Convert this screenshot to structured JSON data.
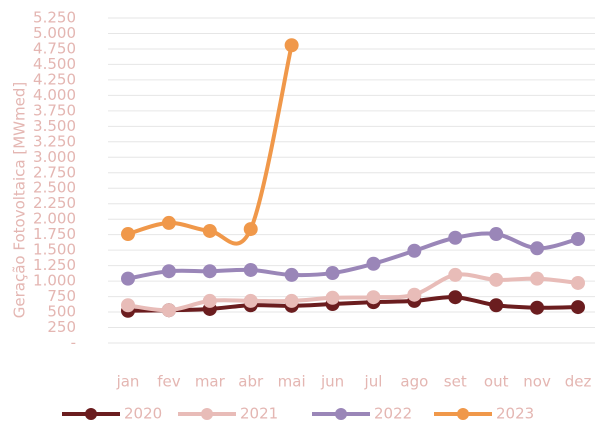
{
  "chart_data": {
    "type": "line",
    "y_label": "Geração Fotovoltaica [MWmed]",
    "categories": [
      "jan",
      "fev",
      "mar",
      "abr",
      "mai",
      "jun",
      "jul",
      "ago",
      "set",
      "out",
      "nov",
      "dez"
    ],
    "series": [
      {
        "name": "2020",
        "color": "#6b1d1f",
        "values": [
          520,
          530,
          550,
          610,
          600,
          630,
          660,
          680,
          740,
          610,
          570,
          580
        ]
      },
      {
        "name": "2021",
        "color": "#e8bcb8",
        "values": [
          610,
          530,
          680,
          680,
          680,
          730,
          740,
          780,
          1100,
          1020,
          1040,
          970
        ]
      },
      {
        "name": "2022",
        "color": "#9a86b8",
        "values": [
          1040,
          1160,
          1160,
          1180,
          1100,
          1130,
          1280,
          1490,
          1700,
          1760,
          1530,
          1680
        ]
      },
      {
        "name": "2023",
        "color": "#f0984a",
        "values": [
          1760,
          1940,
          1810,
          1840,
          4810,
          null,
          null,
          null,
          null,
          null,
          null,
          null
        ]
      }
    ],
    "ylim": [
      0,
      5250
    ],
    "yticks": [
      {
        "value": 0,
        "label": "-"
      },
      250,
      500,
      750,
      {
        "value": 1000,
        "label": "1.000"
      },
      {
        "value": 1250,
        "label": "1.250"
      },
      {
        "value": 1500,
        "label": "1.500"
      },
      {
        "value": 1750,
        "label": "1.750"
      },
      {
        "value": 2000,
        "label": "2.000"
      },
      {
        "value": 2250,
        "label": "2.250"
      },
      {
        "value": 2500,
        "label": "2.500"
      },
      {
        "value": 2750,
        "label": "2.750"
      },
      {
        "value": 3000,
        "label": "3.000"
      },
      {
        "value": 3250,
        "label": "3.250"
      },
      {
        "value": 3500,
        "label": "3.500"
      },
      {
        "value": 3750,
        "label": "3.750"
      },
      {
        "value": 4000,
        "label": "4.000"
      },
      {
        "value": 4250,
        "label": "4.250"
      },
      {
        "value": 4500,
        "label": "4.500"
      },
      {
        "value": 4750,
        "label": "4.750"
      },
      {
        "value": 5000,
        "label": "5.000"
      },
      {
        "value": 5250,
        "label": "5.250"
      }
    ],
    "grid": true
  }
}
